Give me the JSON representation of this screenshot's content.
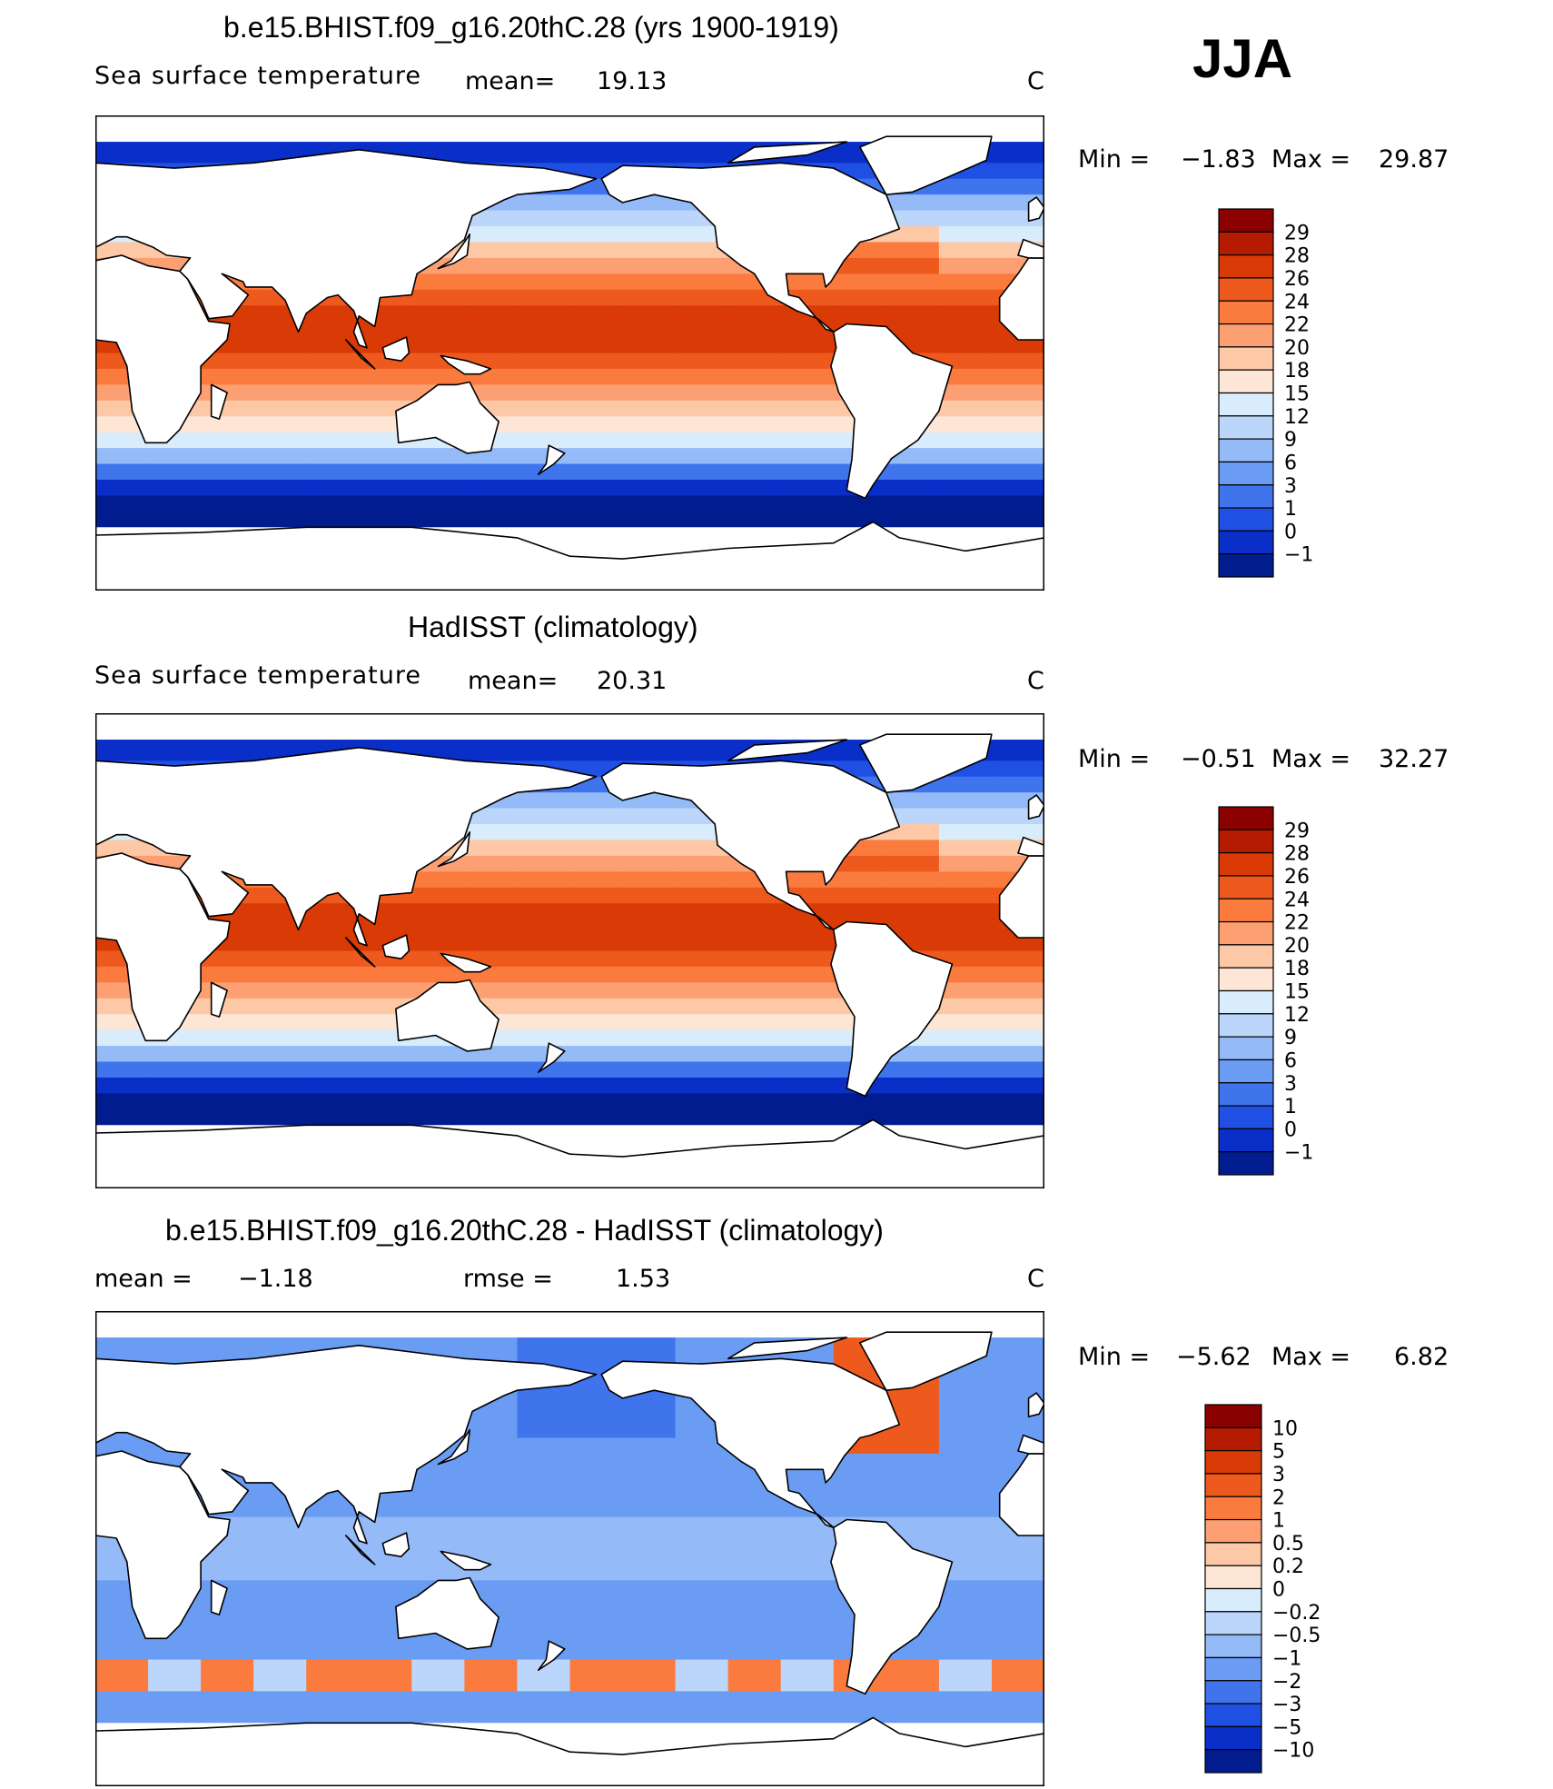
{
  "season": "JJA",
  "panels": [
    {
      "title": "b.e15.BHIST.f09_g16.20thC.28 (yrs 1900-1919)",
      "variable": "Sea surface temperature",
      "stat1_label": "mean=",
      "stat1_value": "19.13",
      "stat2_label": "",
      "stat2_value": "",
      "units": "C",
      "min_label": "Min =",
      "min_value": "−1.83",
      "max_label": "Max =",
      "max_value": "29.87",
      "kind": "sst",
      "colorbar": {
        "labels": [
          "29",
          "28",
          "26",
          "24",
          "22",
          "20",
          "18",
          "15",
          "12",
          "9",
          "6",
          "3",
          "1",
          "0",
          "−1"
        ],
        "colors": [
          "#8b0000",
          "#b51b00",
          "#d93a06",
          "#ee5a1e",
          "#fb7b3f",
          "#fca074",
          "#fdc8a6",
          "#fde6d5",
          "#d9ecfc",
          "#bcd6fb",
          "#94baf8",
          "#6b9cf3",
          "#3f74ec",
          "#1f4fe3",
          "#0a2fc9",
          "#001c8f"
        ]
      }
    },
    {
      "title": "HadISST (climatology)",
      "variable": "Sea surface temperature",
      "stat1_label": "mean=",
      "stat1_value": "20.31",
      "stat2_label": "",
      "stat2_value": "",
      "units": "C",
      "min_label": "Min =",
      "min_value": "−0.51",
      "max_label": "Max =",
      "max_value": "32.27",
      "kind": "sst",
      "colorbar": {
        "labels": [
          "29",
          "28",
          "26",
          "24",
          "22",
          "20",
          "18",
          "15",
          "12",
          "9",
          "6",
          "3",
          "1",
          "0",
          "−1"
        ],
        "colors": [
          "#8b0000",
          "#b51b00",
          "#d93a06",
          "#ee5a1e",
          "#fb7b3f",
          "#fca074",
          "#fdc8a6",
          "#fde6d5",
          "#d9ecfc",
          "#bcd6fb",
          "#94baf8",
          "#6b9cf3",
          "#3f74ec",
          "#1f4fe3",
          "#0a2fc9",
          "#001c8f"
        ]
      }
    },
    {
      "title": "b.e15.BHIST.f09_g16.20thC.28 - HadISST (climatology)",
      "variable": "",
      "stat1_label": "mean =",
      "stat1_value": "−1.18",
      "stat2_label": "rmse =",
      "stat2_value": "1.53",
      "units": "C",
      "min_label": "Min =",
      "min_value": "−5.62",
      "max_label": "Max =",
      "max_value": "6.82",
      "kind": "diff",
      "colorbar": {
        "labels": [
          "10",
          "5",
          "3",
          "2",
          "1",
          "0.5",
          "0.2",
          "0",
          "−0.2",
          "−0.5",
          "−1",
          "−2",
          "−3",
          "−5",
          "−10"
        ],
        "colors": [
          "#8b0000",
          "#b51b00",
          "#d93a06",
          "#ee5a1e",
          "#fb7b3f",
          "#fca074",
          "#fdc8a6",
          "#fde6d5",
          "#d9ecfc",
          "#bcd6fb",
          "#94baf8",
          "#6b9cf3",
          "#3f74ec",
          "#1f4fe3",
          "#0a2fc9",
          "#001c8f"
        ]
      }
    }
  ]
}
